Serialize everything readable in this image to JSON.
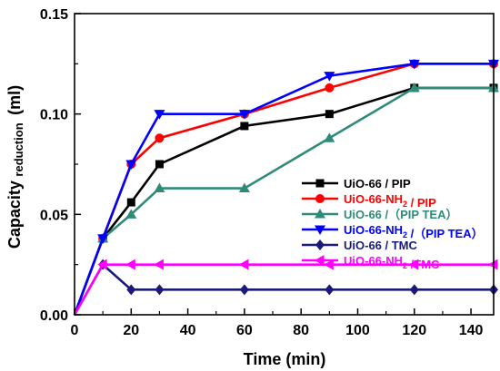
{
  "chart_data": {
    "type": "line",
    "xlabel": "Time (min)",
    "ylabel_main": "Capacity",
    "ylabel_sub": "reduction",
    "ylabel_unit": "(ml)",
    "xlim": [
      0,
      148
    ],
    "ylim": [
      0,
      0.15
    ],
    "xticks": [
      0,
      20,
      40,
      60,
      80,
      100,
      120,
      140
    ],
    "yticks": [
      0.0,
      0.05,
      0.1,
      0.15
    ],
    "ytick_labels": [
      "0.00",
      "0.05",
      "0.10",
      "0.15"
    ],
    "grid": false,
    "legend_position": "right",
    "series": [
      {
        "name": "UiO-66 / PIP",
        "legend_parts": [
          {
            "t": "UiO-66 / PIP"
          }
        ],
        "color": "#000000",
        "marker": "square",
        "x": [
          0,
          10,
          20,
          30,
          60,
          90,
          120,
          148
        ],
        "y": [
          0,
          0.038,
          0.056,
          0.075,
          0.094,
          0.1,
          0.113,
          0.113
        ]
      },
      {
        "name": "UiO-66-NH2 / PIP",
        "legend_parts": [
          {
            "t": "UiO-66-NH"
          },
          {
            "t": "2",
            "sub": true
          },
          {
            "t": " / PIP"
          }
        ],
        "color": "#ff0000",
        "marker": "circle",
        "x": [
          0,
          10,
          20,
          30,
          60,
          90,
          120,
          148
        ],
        "y": [
          0,
          0.038,
          0.075,
          0.088,
          0.1,
          0.113,
          0.125,
          0.125
        ]
      },
      {
        "name": "UiO-66 /（PIP TEA）",
        "legend_parts": [
          {
            "t": "UiO-66 /（PIP TEA）"
          }
        ],
        "color": "#2e8b7a",
        "marker": "triangle-up",
        "x": [
          0,
          10,
          20,
          30,
          60,
          90,
          120,
          148
        ],
        "y": [
          0,
          0.038,
          0.05,
          0.063,
          0.063,
          0.088,
          0.113,
          0.113
        ]
      },
      {
        "name": "UiO-66-NH2 /（PIP TEA）",
        "legend_parts": [
          {
            "t": "UiO-66-NH"
          },
          {
            "t": "2",
            "sub": true
          },
          {
            "t": " /（PIP TEA）"
          }
        ],
        "color": "#0000ff",
        "marker": "triangle-down",
        "x": [
          0,
          10,
          20,
          30,
          60,
          90,
          120,
          148
        ],
        "y": [
          0,
          0.038,
          0.075,
          0.1,
          0.1,
          0.119,
          0.125,
          0.125
        ]
      },
      {
        "name": "UiO-66 / TMC",
        "legend_parts": [
          {
            "t": "UiO-66 / TMC"
          }
        ],
        "color": "#1a1a7a",
        "marker": "diamond",
        "x": [
          0,
          10,
          20,
          30,
          60,
          90,
          120,
          148
        ],
        "y": [
          0,
          0.025,
          0.0125,
          0.0125,
          0.0125,
          0.0125,
          0.0125,
          0.0125
        ]
      },
      {
        "name": "UiO-66-NH2 /TMC",
        "legend_parts": [
          {
            "t": "UiO-66-NH"
          },
          {
            "t": "2",
            "sub": true
          },
          {
            "t": " /TMC"
          }
        ],
        "color": "#ff00ff",
        "marker": "triangle-left",
        "x": [
          0,
          10,
          20,
          30,
          60,
          90,
          120,
          148
        ],
        "y": [
          0,
          0.025,
          0.025,
          0.025,
          0.025,
          0.025,
          0.025,
          0.025
        ]
      }
    ]
  }
}
